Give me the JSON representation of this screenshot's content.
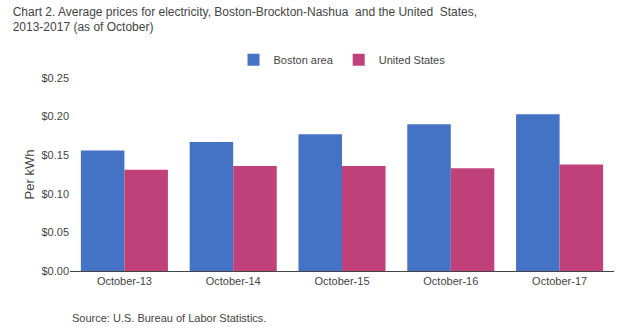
{
  "chart_data": {
    "type": "bar",
    "title": "Chart 2. Average prices for electricity, Boston-Brockton-Nashua  and the United  States,",
    "subtitle": "2013-2017 (as of October)",
    "y_label": "Per kWh",
    "annotations": [
      "Source: U.S. Bureau of Labor Statistics."
    ],
    "categories": [
      "October-13",
      "October-14",
      "October-15",
      "October-16",
      "October-17"
    ],
    "series": [
      {
        "name": "Boston area",
        "color": "#4472C4",
        "values": [
          0.156,
          0.167,
          0.177,
          0.19,
          0.203
        ]
      },
      {
        "name": "United States",
        "color": "#C0407A",
        "values": [
          0.131,
          0.136,
          0.136,
          0.133,
          0.138
        ]
      }
    ],
    "ylim": [
      0,
      0.25
    ],
    "yticks": [
      {
        "value": 0.0,
        "label": "$0.00"
      },
      {
        "value": 0.05,
        "label": "$0.05"
      },
      {
        "value": 0.1,
        "label": "$0.10"
      },
      {
        "value": 0.15,
        "label": "$0.15"
      },
      {
        "value": 0.2,
        "label": "$0.20"
      },
      {
        "value": 0.25,
        "label": "$0.25"
      }
    ],
    "grid": false,
    "legend": "top"
  }
}
